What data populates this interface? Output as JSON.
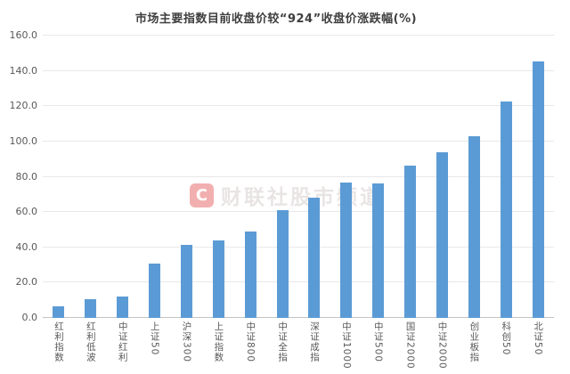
{
  "chart_data": {
    "type": "bar",
    "title": "市场主要指数目前收盘价较“924”收盘价涨跌幅(%)",
    "categories": [
      "红利指数",
      "红利低波",
      "中证红利",
      "上证50",
      "沪深300",
      "上证指数",
      "中证800",
      "中证全指",
      "深证成指",
      "中证1000",
      "中证500",
      "国证2000",
      "中证2000",
      "创业板指",
      "科创50",
      "北证50"
    ],
    "values": [
      6.4,
      10.8,
      12.3,
      30.9,
      41.5,
      44.1,
      49.2,
      61.3,
      68.0,
      76.8,
      76.2,
      86.2,
      93.7,
      102.9,
      122.5,
      145.3
    ],
    "xlabel": "",
    "ylabel": "",
    "ylim": [
      0,
      160
    ],
    "ytick_step": 20,
    "ytick_labels": [
      "0.0",
      "20.0",
      "40.0",
      "60.0",
      "80.0",
      "100.0",
      "120.0",
      "140.0",
      "160.0"
    ],
    "grid": true,
    "legend": null,
    "bar_color": "#5b9bd5"
  },
  "watermark": {
    "logo_letter": "C",
    "text": "财联社股市频道"
  },
  "colors": {
    "bar": "#5b9bd5",
    "gridline": "#e8e8e8",
    "axis_line": "#c3c3c3",
    "title_text": "#3f3f3f",
    "tick_text": "#595959",
    "watermark_red": "#e35050",
    "background": "#ffffff"
  }
}
